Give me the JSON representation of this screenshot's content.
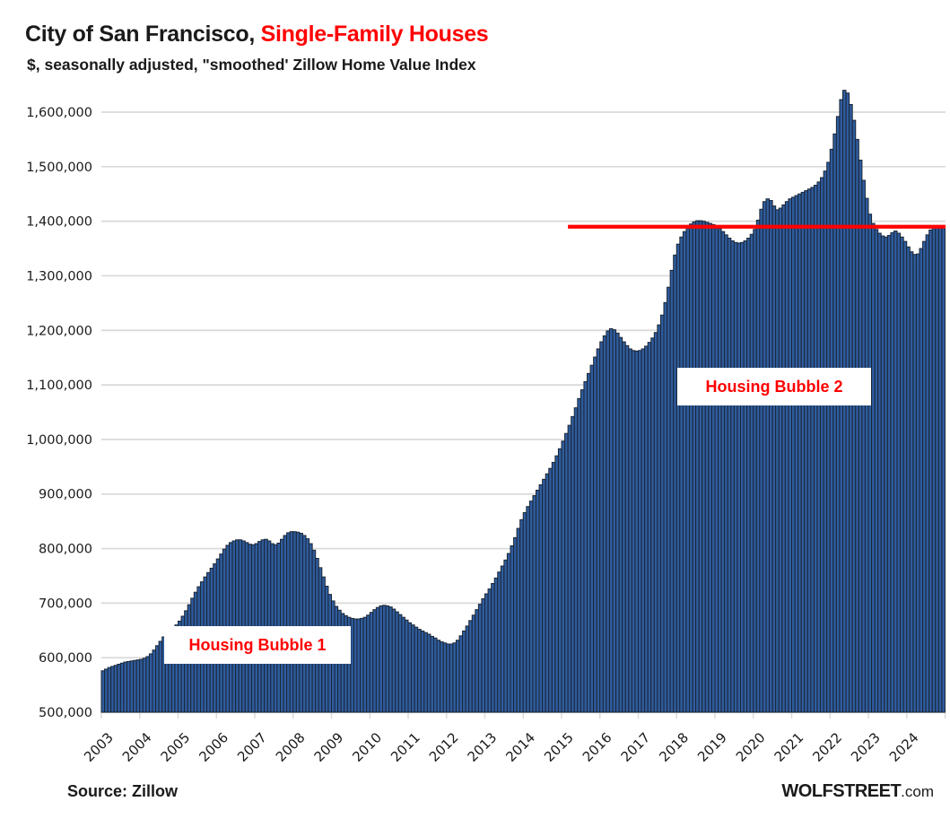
{
  "header": {
    "title_black": "City of San Francisco,",
    "title_red": "Single-Family Houses",
    "subtitle": "$, seasonally adjusted, \"smoothed' Zillow Home Value Index"
  },
  "annotations": {
    "bubble1": "Housing Bubble 1",
    "bubble2": "Housing Bubble 2"
  },
  "footer": {
    "source": "Source: Zillow",
    "brand_caps": "WOLFSTREET",
    "brand_suffix": ".com"
  },
  "colors": {
    "bar_fill": "#2f5c9e",
    "bar_stroke": "#1a2533",
    "gridline": "#d9d9d9",
    "axis_text": "#1a1a1a",
    "reference_red": "#ff0000",
    "title_red": "#ff0000"
  },
  "chart_data": {
    "type": "bar",
    "title": "City of San Francisco, Single-Family Houses",
    "subtitle": "$, seasonally adjusted, \"smoothed' Zillow Home Value Index",
    "unit": "USD",
    "x_start": {
      "year": 2003,
      "month": 1
    },
    "x_end": {
      "year": 2024,
      "month": 12
    },
    "x_tick_labels": [
      "2003",
      "2004",
      "2005",
      "2006",
      "2007",
      "2008",
      "2009",
      "2010",
      "2011",
      "2012",
      "2013",
      "2014",
      "2015",
      "2016",
      "2017",
      "2018",
      "2019",
      "2020",
      "2021",
      "2022",
      "2023",
      "2024"
    ],
    "y_ticks": [
      500000,
      600000,
      700000,
      800000,
      900000,
      1000000,
      1100000,
      1200000,
      1300000,
      1400000,
      1500000,
      1600000
    ],
    "y_tick_labels": [
      "500,000",
      "600,000",
      "700,000",
      "800,000",
      "900,000",
      "1,000,000",
      "1,100,000",
      "1,200,000",
      "1,300,000",
      "1,400,000",
      "1,500,000",
      "1,600,000"
    ],
    "ylim": [
      500000,
      1650000
    ],
    "grid": true,
    "legend": false,
    "reference_line": {
      "value": 1390000,
      "color": "#ff0000",
      "start_month_index": 146
    },
    "series": [
      {
        "name": "Zillow Home Value Index, single-family, San Francisco, monthly",
        "values_usd": [
          576000,
          579000,
          582000,
          584000,
          586000,
          588000,
          590000,
          592000,
          593000,
          594000,
          595000,
          596000,
          597000,
          599000,
          602000,
          607000,
          614000,
          622000,
          630000,
          638000,
          645000,
          650000,
          655000,
          660000,
          667000,
          676000,
          686000,
          697000,
          709000,
          720000,
          730000,
          739000,
          748000,
          756000,
          764000,
          772000,
          781000,
          790000,
          799000,
          806000,
          811000,
          814000,
          816000,
          816000,
          814000,
          811000,
          808000,
          807000,
          809000,
          813000,
          816000,
          817000,
          814000,
          809000,
          807000,
          810000,
          817000,
          824000,
          829000,
          831000,
          831000,
          830000,
          828000,
          824000,
          818000,
          809000,
          797000,
          782000,
          765000,
          748000,
          731000,
          716000,
          704000,
          694000,
          687000,
          681000,
          677000,
          674000,
          672000,
          671000,
          671000,
          672000,
          674000,
          678000,
          683000,
          688000,
          692000,
          695000,
          696000,
          695000,
          693000,
          689000,
          684000,
          679000,
          674000,
          669000,
          664000,
          660000,
          656000,
          652000,
          649000,
          646000,
          643000,
          639000,
          636000,
          632000,
          629000,
          627000,
          625000,
          625000,
          627000,
          632000,
          640000,
          649000,
          658000,
          668000,
          678000,
          688000,
          698000,
          708000,
          717000,
          726000,
          736000,
          746000,
          757000,
          768000,
          779000,
          791000,
          805000,
          820000,
          837000,
          853000,
          866000,
          877000,
          887000,
          897000,
          907000,
          917000,
          927000,
          937000,
          947000,
          958000,
          970000,
          983000,
          997000,
          1011000,
          1026000,
          1042000,
          1058000,
          1075000,
          1091000,
          1106000,
          1121000,
          1136000,
          1151000,
          1166000,
          1179000,
          1190000,
          1199000,
          1203000,
          1201000,
          1195000,
          1187000,
          1179000,
          1172000,
          1166000,
          1163000,
          1162000,
          1163000,
          1166000,
          1171000,
          1178000,
          1186000,
          1196000,
          1210000,
          1228000,
          1251000,
          1279000,
          1310000,
          1338000,
          1358000,
          1371000,
          1381000,
          1389000,
          1395000,
          1399000,
          1401000,
          1401000,
          1400000,
          1398000,
          1396000,
          1394000,
          1391000,
          1387000,
          1381000,
          1375000,
          1369000,
          1364000,
          1361000,
          1360000,
          1361000,
          1364000,
          1369000,
          1376000,
          1385000,
          1402000,
          1422000,
          1436000,
          1441000,
          1438000,
          1428000,
          1421000,
          1424000,
          1430000,
          1436000,
          1441000,
          1444000,
          1447000,
          1450000,
          1453000,
          1456000,
          1459000,
          1462000,
          1466000,
          1472000,
          1480000,
          1492000,
          1508000,
          1532000,
          1560000,
          1592000,
          1623000,
          1640000,
          1635000,
          1614000,
          1585000,
          1550000,
          1512000,
          1475000,
          1442000,
          1413000,
          1396000,
          1385000,
          1378000,
          1373000,
          1371000,
          1374000,
          1379000,
          1382000,
          1378000,
          1371000,
          1363000,
          1353000,
          1344000,
          1339000,
          1340000,
          1350000,
          1363000,
          1375000,
          1384000,
          1389000,
          1391000,
          1391000,
          1392000
        ]
      }
    ]
  }
}
